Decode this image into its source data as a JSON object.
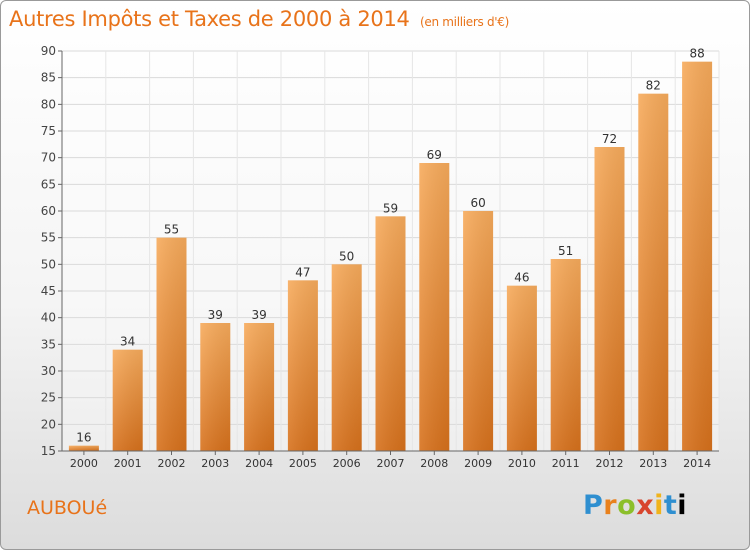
{
  "title": "Autres Impôts et Taxes de 2000 à 2014",
  "unit_note": "(en milliers d'€)",
  "commune": "AUBOUé",
  "brand": "Proxiti",
  "colors": {
    "accent": "#e8731a",
    "bar_top": "#f6a95a",
    "bar_bottom": "#d9701a",
    "grid": "#dadada",
    "axis": "#666666"
  },
  "chart_data": {
    "type": "bar",
    "title": "Autres Impôts et Taxes de 2000 à 2014",
    "xlabel": "",
    "ylabel": "",
    "categories": [
      "2000",
      "2001",
      "2002",
      "2003",
      "2004",
      "2005",
      "2006",
      "2007",
      "2008",
      "2009",
      "2010",
      "2011",
      "2012",
      "2013",
      "2014"
    ],
    "values": [
      16,
      34,
      55,
      39,
      39,
      47,
      50,
      59,
      69,
      60,
      46,
      51,
      72,
      82,
      88
    ],
    "ylim": [
      15,
      90
    ],
    "yticks": [
      15,
      20,
      25,
      30,
      35,
      40,
      45,
      50,
      55,
      60,
      65,
      70,
      75,
      80,
      85,
      90
    ],
    "grid": true,
    "data_labels": true
  }
}
